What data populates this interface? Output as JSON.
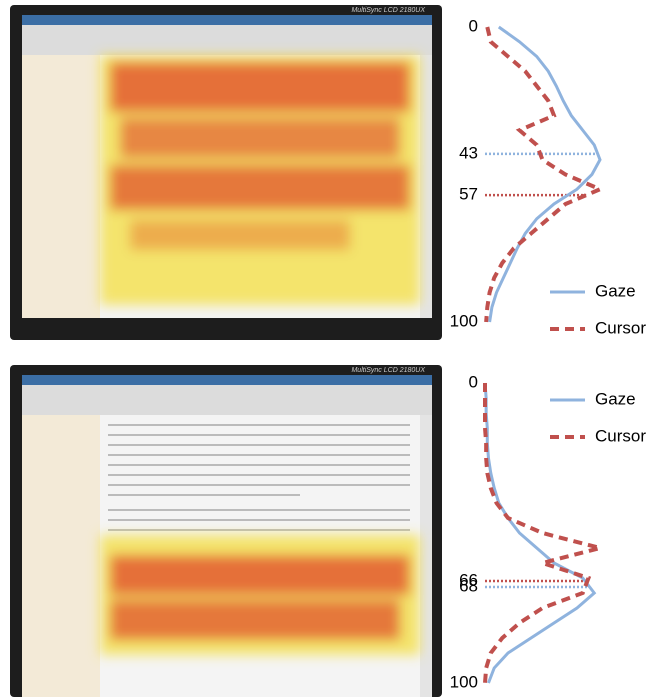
{
  "chart_data": [
    {
      "type": "line",
      "orientation": "vertical",
      "legend": "lower right",
      "y": [
        0,
        5,
        10,
        15,
        20,
        25,
        30,
        35,
        40,
        45,
        50,
        55,
        60,
        65,
        70,
        75,
        80,
        85,
        90,
        95,
        100
      ],
      "ylim": [
        0,
        100
      ],
      "yticks": [
        0,
        43,
        57,
        100
      ],
      "xlim": [
        0,
        1
      ],
      "series": [
        {
          "name": "Gaze",
          "color": "#8fb3de",
          "dash": false,
          "values": [
            0.12,
            0.3,
            0.45,
            0.55,
            0.62,
            0.68,
            0.75,
            0.85,
            0.95,
            1.0,
            0.93,
            0.8,
            0.6,
            0.45,
            0.35,
            0.28,
            0.22,
            0.16,
            0.1,
            0.06,
            0.04
          ]
        },
        {
          "name": "Cursor",
          "color": "#c0504d",
          "dash": true,
          "values": [
            0.02,
            0.05,
            0.2,
            0.35,
            0.45,
            0.55,
            0.6,
            0.3,
            0.45,
            0.5,
            0.7,
            1.0,
            0.7,
            0.55,
            0.4,
            0.25,
            0.15,
            0.08,
            0.04,
            0.02,
            0.01
          ]
        }
      ]
    },
    {
      "type": "line",
      "orientation": "vertical",
      "legend": "upper right",
      "y": [
        0,
        5,
        10,
        15,
        20,
        25,
        30,
        35,
        40,
        45,
        50,
        55,
        60,
        65,
        70,
        75,
        80,
        85,
        90,
        95,
        100
      ],
      "ylim": [
        0,
        100
      ],
      "yticks": [
        0,
        66,
        68,
        100
      ],
      "xlim": [
        0,
        1
      ],
      "series": [
        {
          "name": "Gaze",
          "color": "#8fb3de",
          "dash": false,
          "values": [
            0.0,
            0.01,
            0.01,
            0.02,
            0.02,
            0.03,
            0.05,
            0.08,
            0.12,
            0.2,
            0.3,
            0.45,
            0.6,
            0.85,
            0.95,
            0.8,
            0.6,
            0.4,
            0.2,
            0.08,
            0.03
          ]
        },
        {
          "name": "Cursor",
          "color": "#c0504d",
          "dash": true,
          "values": [
            0,
            0,
            0,
            0,
            0.01,
            0.01,
            0.02,
            0.05,
            0.1,
            0.2,
            0.5,
            1.0,
            0.5,
            0.9,
            0.85,
            0.5,
            0.3,
            0.15,
            0.05,
            0.01,
            0
          ]
        }
      ]
    }
  ],
  "monitors": [
    {
      "brand": "MultiSync LCD 2180UX"
    },
    {
      "brand": "MultiSync LCD 2180UX"
    }
  ]
}
